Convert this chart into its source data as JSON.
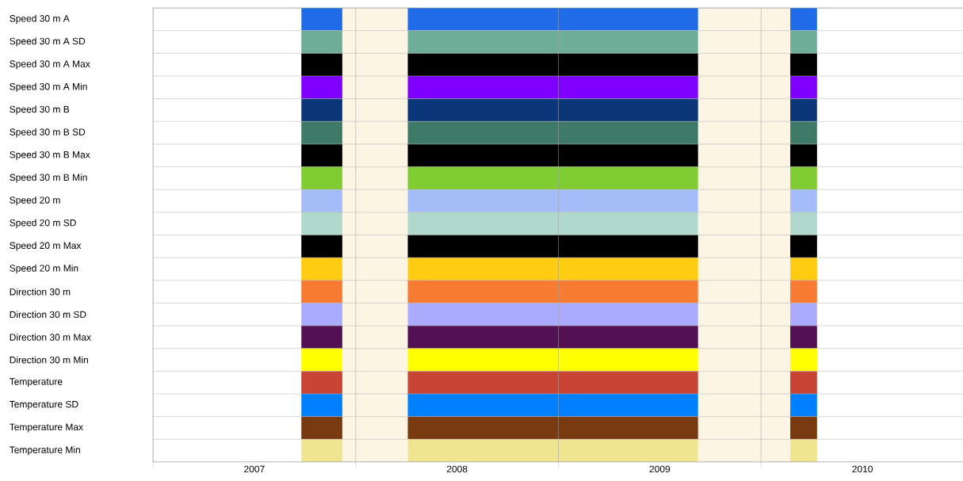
{
  "chart_data": {
    "type": "bar",
    "orientation": "horizontal",
    "grid": true,
    "categories": [
      "Speed 30 m A",
      "Speed 30 m A SD",
      "Speed 30 m A Max",
      "Speed 30 m A Min",
      "Speed 30 m B",
      "Speed 30 m B SD",
      "Speed 30 m B Max",
      "Speed 30 m B Min",
      "Speed 20 m",
      "Speed 20 m SD",
      "Speed 20 m Max",
      "Speed 20 m Min",
      "Direction 30 m",
      "Direction 30 m SD",
      "Direction 30 m Max",
      "Direction 30 m Min",
      "Temperature",
      "Temperature SD",
      "Temperature Max",
      "Temperature Min"
    ],
    "series": [
      {
        "base": [
          2007.732,
          2007.732,
          2007.732,
          2007.732,
          2007.732,
          2007.732,
          2007.732,
          2007.732,
          2007.732,
          2007.732,
          2007.732,
          2007.732,
          2007.732,
          2007.732,
          2007.732,
          2007.732,
          2007.732,
          2007.732,
          2007.732,
          2007.732
        ],
        "values": [
          0.202,
          0.202,
          0.202,
          0.202,
          0.202,
          0.202,
          0.202,
          0.202,
          0.202,
          0.202,
          0.202,
          0.202,
          0.202,
          0.202,
          0.202,
          0.202,
          0.202,
          0.202,
          0.202,
          0.202
        ],
        "colors": [
          "#1f6be8",
          "#6eae98",
          "#000000",
          "#8000ff",
          "#0b3677",
          "#3f7a68",
          "#000000",
          "#80cc33",
          "#a4bdf8",
          "#b0d8cc",
          "#000000",
          "#ffcc11",
          "#f77b33",
          "#aaaaff",
          "#531052",
          "#ffff00",
          "#c84535",
          "#0080ff",
          "#7a3a10",
          "#efe48f"
        ]
      },
      {
        "base": [
          2008.257,
          2008.257,
          2008.257,
          2008.257,
          2008.257,
          2008.257,
          2008.257,
          2008.257,
          2008.257,
          2008.257,
          2008.257,
          2008.257,
          2008.257,
          2008.257,
          2008.257,
          2008.257,
          2008.257,
          2008.257,
          2008.257,
          2008.257
        ],
        "values": [
          1.432,
          1.432,
          1.432,
          1.432,
          1.432,
          1.432,
          1.432,
          1.432,
          1.432,
          1.432,
          1.432,
          1.432,
          1.432,
          1.432,
          1.432,
          1.432,
          1.432,
          1.432,
          1.432,
          1.432
        ],
        "colors": [
          "#1f6be8",
          "#6eae98",
          "#000000",
          "#8000ff",
          "#0b3677",
          "#3f7a68",
          "#000000",
          "#80cc33",
          "#a4bdf8",
          "#b0d8cc",
          "#000000",
          "#ffcc11",
          "#f77b33",
          "#aaaaff",
          "#531052",
          "#ffff00",
          "#c84535",
          "#0080ff",
          "#7a3a10",
          "#efe48f"
        ]
      },
      {
        "base": [
          2010.144,
          2010.144,
          2010.144,
          2010.144,
          2010.144,
          2010.144,
          2010.144,
          2010.144,
          2010.144,
          2010.144,
          2010.144,
          2010.144,
          2010.144,
          2010.144,
          2010.144,
          2010.144,
          2010.144,
          2010.144,
          2010.144,
          2010.144
        ],
        "values": [
          0.132,
          0.132,
          0.132,
          0.132,
          0.132,
          0.132,
          0.132,
          0.132,
          0.132,
          0.132,
          0.132,
          0.132,
          0.132,
          0.132,
          0.132,
          0.132,
          0.132,
          0.132,
          0.132,
          0.132
        ],
        "colors": [
          "#1f6be8",
          "#6eae98",
          "#000000",
          "#8000ff",
          "#0b3677",
          "#3f7a68",
          "#000000",
          "#80cc33",
          "#a4bdf8",
          "#b0d8cc",
          "#000000",
          "#ffcc11",
          "#f77b33",
          "#aaaaff",
          "#531052",
          "#ffff00",
          "#c84535",
          "#0080ff",
          "#7a3a10",
          "#efe48f"
        ]
      }
    ],
    "bands": [
      {
        "axis": "x",
        "from": 2007.934,
        "to": 2008.257,
        "color": "#fdf5e4"
      },
      {
        "axis": "x",
        "from": 2009.689,
        "to": 2010.144,
        "color": "#fdf5e4"
      }
    ],
    "xlim": [
      2007,
      2011
    ],
    "xticks": [
      {
        "value": 2007,
        "label": null
      },
      {
        "value": 2007.5,
        "label": "2007"
      },
      {
        "value": 2008,
        "label": null
      },
      {
        "value": 2008.5,
        "label": "2008"
      },
      {
        "value": 2009,
        "label": null
      },
      {
        "value": 2009.5,
        "label": "2009"
      },
      {
        "value": 2010,
        "label": null
      },
      {
        "value": 2010.5,
        "label": "2010"
      }
    ]
  }
}
